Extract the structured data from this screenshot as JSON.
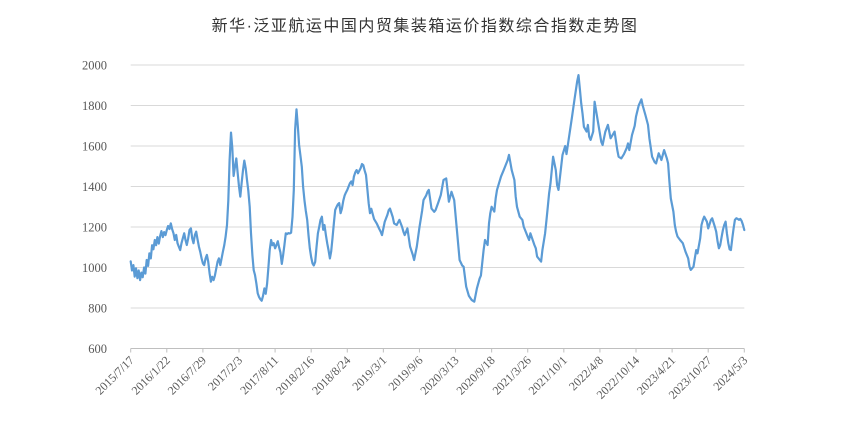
{
  "title": "新华·泛亚航运中国内贸集装箱运价指数综合指数走势图",
  "colors": {
    "background": "#ffffff",
    "grid": "#d9d9d9",
    "axis": "#bfbfbf",
    "label": "#595959",
    "title": "#333333",
    "line": "#5B9BD5"
  },
  "chart_data": {
    "type": "line",
    "title": "新华·泛亚航运中国内贸集装箱运价指数综合指数走势图",
    "xlabel": "",
    "ylabel": "",
    "legend": "none",
    "grid": "horizontal",
    "line_color": "#5B9BD5",
    "y_axis": {
      "min": 600,
      "max": 2000,
      "step": 200,
      "tick_labels": [
        "600",
        "800",
        "1000",
        "1200",
        "1400",
        "1600",
        "1800",
        "2000"
      ]
    },
    "x_tick_labels": [
      "2015/7/17",
      "2016/1/22",
      "2016/7/29",
      "2017/2/3",
      "2017/8/11",
      "2018/2/16",
      "2018/8/24",
      "2019/3/1",
      "2019/9/6",
      "2020/3/13",
      "2020/9/18",
      "2021/3/26",
      "2021/10/1",
      "2022/4/8",
      "2022/10/14",
      "2023/4/21",
      "2023/10/27",
      "2024/5/3"
    ],
    "points_per_tick_interval": 27,
    "total_points": 460,
    "series_name": "综合指数",
    "anchors": [
      [
        0,
        1030
      ],
      [
        1,
        985
      ],
      [
        2,
        1012
      ],
      [
        3,
        955
      ],
      [
        4,
        996
      ],
      [
        5,
        947
      ],
      [
        6,
        985
      ],
      [
        7,
        938
      ],
      [
        8,
        975
      ],
      [
        9,
        952
      ],
      [
        10,
        1000
      ],
      [
        11,
        970
      ],
      [
        12,
        1037
      ],
      [
        13,
        1008
      ],
      [
        14,
        1070
      ],
      [
        15,
        1045
      ],
      [
        16,
        1110
      ],
      [
        17,
        1090
      ],
      [
        18,
        1136
      ],
      [
        19,
        1110
      ],
      [
        20,
        1150
      ],
      [
        21,
        1118
      ],
      [
        22,
        1155
      ],
      [
        23,
        1180
      ],
      [
        24,
        1150
      ],
      [
        25,
        1175
      ],
      [
        26,
        1160
      ],
      [
        27,
        1185
      ],
      [
        28,
        1205
      ],
      [
        29,
        1190
      ],
      [
        30,
        1218
      ],
      [
        31,
        1190
      ],
      [
        32,
        1169
      ],
      [
        33,
        1136
      ],
      [
        34,
        1161
      ],
      [
        35,
        1120
      ],
      [
        36,
        1103
      ],
      [
        37,
        1086
      ],
      [
        38,
        1120
      ],
      [
        39,
        1144
      ],
      [
        40,
        1169
      ],
      [
        41,
        1136
      ],
      [
        42,
        1111
      ],
      [
        43,
        1144
      ],
      [
        44,
        1185
      ],
      [
        45,
        1193
      ],
      [
        46,
        1144
      ],
      [
        47,
        1120
      ],
      [
        48,
        1161
      ],
      [
        49,
        1177
      ],
      [
        50,
        1140
      ],
      [
        51,
        1103
      ],
      [
        52,
        1078
      ],
      [
        53,
        1045
      ],
      [
        54,
        1020
      ],
      [
        55,
        1012
      ],
      [
        56,
        1045
      ],
      [
        57,
        1062
      ],
      [
        58,
        1029
      ],
      [
        59,
        971
      ],
      [
        60,
        930
      ],
      [
        61,
        954
      ],
      [
        62,
        938
      ],
      [
        63,
        960
      ],
      [
        64,
        996
      ],
      [
        65,
        1029
      ],
      [
        66,
        1045
      ],
      [
        67,
        1012
      ],
      [
        68,
        1045
      ],
      [
        69,
        1078
      ],
      [
        70,
        1111
      ],
      [
        71,
        1152
      ],
      [
        72,
        1210
      ],
      [
        73,
        1330
      ],
      [
        74,
        1530
      ],
      [
        75,
        1666
      ],
      [
        76,
        1590
      ],
      [
        77,
        1452
      ],
      [
        78,
        1500
      ],
      [
        79,
        1539
      ],
      [
        80,
        1470
      ],
      [
        81,
        1400
      ],
      [
        82,
        1350
      ],
      [
        83,
        1420
      ],
      [
        84,
        1480
      ],
      [
        85,
        1528
      ],
      [
        86,
        1490
      ],
      [
        87,
        1432
      ],
      [
        88,
        1380
      ],
      [
        89,
        1300
      ],
      [
        90,
        1169
      ],
      [
        91,
        1060
      ],
      [
        92,
        987
      ],
      [
        93,
        963
      ],
      [
        94,
        920
      ],
      [
        95,
        873
      ],
      [
        96,
        855
      ],
      [
        97,
        843
      ],
      [
        98,
        836
      ],
      [
        99,
        860
      ],
      [
        100,
        897
      ],
      [
        101,
        870
      ],
      [
        102,
        920
      ],
      [
        103,
        1000
      ],
      [
        104,
        1086
      ],
      [
        105,
        1136
      ],
      [
        106,
        1110
      ],
      [
        107,
        1120
      ],
      [
        108,
        1095
      ],
      [
        109,
        1110
      ],
      [
        110,
        1130
      ],
      [
        111,
        1100
      ],
      [
        112,
        1075
      ],
      [
        113,
        1018
      ],
      [
        114,
        1060
      ],
      [
        115,
        1110
      ],
      [
        116,
        1169
      ],
      [
        117,
        1165
      ],
      [
        118,
        1170
      ],
      [
        119,
        1168
      ],
      [
        120,
        1172
      ],
      [
        121,
        1250
      ],
      [
        122,
        1383
      ],
      [
        123,
        1680
      ],
      [
        124,
        1781
      ],
      [
        125,
        1700
      ],
      [
        126,
        1605
      ],
      [
        127,
        1550
      ],
      [
        128,
        1498
      ],
      [
        129,
        1399
      ],
      [
        130,
        1330
      ],
      [
        131,
        1280
      ],
      [
        132,
        1235
      ],
      [
        133,
        1160
      ],
      [
        134,
        1095
      ],
      [
        135,
        1050
      ],
      [
        136,
        1020
      ],
      [
        137,
        1010
      ],
      [
        138,
        1028
      ],
      [
        139,
        1100
      ],
      [
        140,
        1169
      ],
      [
        141,
        1200
      ],
      [
        142,
        1235
      ],
      [
        143,
        1251
      ],
      [
        144,
        1186
      ],
      [
        145,
        1210
      ],
      [
        146,
        1160
      ],
      [
        147,
        1120
      ],
      [
        148,
        1086
      ],
      [
        149,
        1045
      ],
      [
        150,
        1080
      ],
      [
        151,
        1150
      ],
      [
        152,
        1220
      ],
      [
        153,
        1284
      ],
      [
        154,
        1300
      ],
      [
        155,
        1312
      ],
      [
        156,
        1318
      ],
      [
        157,
        1268
      ],
      [
        158,
        1290
      ],
      [
        159,
        1330
      ],
      [
        160,
        1355
      ],
      [
        161,
        1370
      ],
      [
        162,
        1383
      ],
      [
        163,
        1400
      ],
      [
        164,
        1416
      ],
      [
        165,
        1425
      ],
      [
        166,
        1407
      ],
      [
        167,
        1449
      ],
      [
        168,
        1470
      ],
      [
        169,
        1481
      ],
      [
        170,
        1465
      ],
      [
        172,
        1490
      ],
      [
        173,
        1511
      ],
      [
        174,
        1505
      ],
      [
        175,
        1480
      ],
      [
        176,
        1457
      ],
      [
        177,
        1390
      ],
      [
        178,
        1316
      ],
      [
        179,
        1268
      ],
      [
        180,
        1290
      ],
      [
        182,
        1240
      ],
      [
        184,
        1218
      ],
      [
        186,
        1190
      ],
      [
        187,
        1177
      ],
      [
        188,
        1160
      ],
      [
        190,
        1225
      ],
      [
        192,
        1260
      ],
      [
        193,
        1283
      ],
      [
        194,
        1291
      ],
      [
        196,
        1250
      ],
      [
        197,
        1218
      ],
      [
        199,
        1210
      ],
      [
        201,
        1235
      ],
      [
        203,
        1200
      ],
      [
        204,
        1177
      ],
      [
        205,
        1160
      ],
      [
        207,
        1193
      ],
      [
        209,
        1103
      ],
      [
        211,
        1062
      ],
      [
        212,
        1037
      ],
      [
        214,
        1103
      ],
      [
        216,
        1200
      ],
      [
        218,
        1280
      ],
      [
        219,
        1333
      ],
      [
        221,
        1355
      ],
      [
        222,
        1374
      ],
      [
        223,
        1383
      ],
      [
        225,
        1291
      ],
      [
        227,
        1275
      ],
      [
        228,
        1283
      ],
      [
        230,
        1320
      ],
      [
        232,
        1358
      ],
      [
        234,
        1432
      ],
      [
        236,
        1440
      ],
      [
        238,
        1325
      ],
      [
        240,
        1374
      ],
      [
        242,
        1333
      ],
      [
        244,
        1185
      ],
      [
        246,
        1037
      ],
      [
        248,
        1010
      ],
      [
        249,
        1004
      ],
      [
        251,
        905
      ],
      [
        253,
        860
      ],
      [
        255,
        840
      ],
      [
        257,
        831
      ],
      [
        259,
        897
      ],
      [
        261,
        945
      ],
      [
        262,
        960
      ],
      [
        264,
        1086
      ],
      [
        265,
        1136
      ],
      [
        267,
        1111
      ],
      [
        268,
        1218
      ],
      [
        269,
        1268
      ],
      [
        270,
        1300
      ],
      [
        272,
        1276
      ],
      [
        273,
        1342
      ],
      [
        274,
        1383
      ],
      [
        277,
        1449
      ],
      [
        279,
        1481
      ],
      [
        282,
        1531
      ],
      [
        283,
        1556
      ],
      [
        285,
        1481
      ],
      [
        287,
        1432
      ],
      [
        288,
        1350
      ],
      [
        289,
        1300
      ],
      [
        291,
        1251
      ],
      [
        293,
        1235
      ],
      [
        294,
        1202
      ],
      [
        297,
        1152
      ],
      [
        298,
        1136
      ],
      [
        299,
        1169
      ],
      [
        302,
        1111
      ],
      [
        303,
        1095
      ],
      [
        304,
        1054
      ],
      [
        306,
        1037
      ],
      [
        307,
        1029
      ],
      [
        308,
        1086
      ],
      [
        310,
        1169
      ],
      [
        311,
        1235
      ],
      [
        312,
        1300
      ],
      [
        313,
        1366
      ],
      [
        314,
        1416
      ],
      [
        316,
        1547
      ],
      [
        318,
        1481
      ],
      [
        319,
        1407
      ],
      [
        320,
        1383
      ],
      [
        323,
        1556
      ],
      [
        325,
        1600
      ],
      [
        326,
        1560
      ],
      [
        328,
        1650
      ],
      [
        330,
        1740
      ],
      [
        332,
        1830
      ],
      [
        334,
        1920
      ],
      [
        335,
        1950
      ],
      [
        336,
        1880
      ],
      [
        337,
        1811
      ],
      [
        338,
        1761
      ],
      [
        339,
        1695
      ],
      [
        341,
        1671
      ],
      [
        342,
        1704
      ],
      [
        343,
        1646
      ],
      [
        344,
        1630
      ],
      [
        346,
        1671
      ],
      [
        347,
        1819
      ],
      [
        348,
        1780
      ],
      [
        350,
        1700
      ],
      [
        352,
        1620
      ],
      [
        353,
        1605
      ],
      [
        355,
        1670
      ],
      [
        357,
        1704
      ],
      [
        359,
        1638
      ],
      [
        361,
        1660
      ],
      [
        362,
        1671
      ],
      [
        364,
        1580
      ],
      [
        365,
        1547
      ],
      [
        367,
        1539
      ],
      [
        369,
        1560
      ],
      [
        371,
        1590
      ],
      [
        372,
        1613
      ],
      [
        373,
        1580
      ],
      [
        375,
        1654
      ],
      [
        377,
        1700
      ],
      [
        378,
        1745
      ],
      [
        380,
        1800
      ],
      [
        382,
        1830
      ],
      [
        383,
        1800
      ],
      [
        385,
        1753
      ],
      [
        387,
        1704
      ],
      [
        388,
        1638
      ],
      [
        390,
        1547
      ],
      [
        392,
        1520
      ],
      [
        393,
        1514
      ],
      [
        395,
        1564
      ],
      [
        397,
        1531
      ],
      [
        399,
        1580
      ],
      [
        401,
        1540
      ],
      [
        402,
        1514
      ],
      [
        403,
        1424
      ],
      [
        404,
        1341
      ],
      [
        406,
        1276
      ],
      [
        407,
        1210
      ],
      [
        408,
        1177
      ],
      [
        409,
        1153
      ],
      [
        411,
        1136
      ],
      [
        413,
        1120
      ],
      [
        415,
        1078
      ],
      [
        417,
        1045
      ],
      [
        418,
        1004
      ],
      [
        419,
        988
      ],
      [
        421,
        1004
      ],
      [
        422,
        1045
      ],
      [
        423,
        1086
      ],
      [
        424,
        1070
      ],
      [
        426,
        1144
      ],
      [
        427,
        1210
      ],
      [
        428,
        1235
      ],
      [
        429,
        1251
      ],
      [
        431,
        1226
      ],
      [
        432,
        1193
      ],
      [
        434,
        1235
      ],
      [
        435,
        1243
      ],
      [
        437,
        1200
      ],
      [
        438,
        1177
      ],
      [
        439,
        1128
      ],
      [
        440,
        1095
      ],
      [
        441,
        1110
      ],
      [
        442,
        1150
      ],
      [
        443,
        1185
      ],
      [
        444,
        1210
      ],
      [
        445,
        1226
      ],
      [
        446,
        1169
      ],
      [
        447,
        1120
      ],
      [
        448,
        1090
      ],
      [
        449,
        1086
      ],
      [
        450,
        1144
      ],
      [
        451,
        1193
      ],
      [
        452,
        1235
      ],
      [
        453,
        1243
      ],
      [
        454,
        1240
      ],
      [
        455,
        1235
      ],
      [
        456,
        1240
      ],
      [
        457,
        1230
      ],
      [
        458,
        1210
      ],
      [
        459,
        1185
      ]
    ]
  }
}
